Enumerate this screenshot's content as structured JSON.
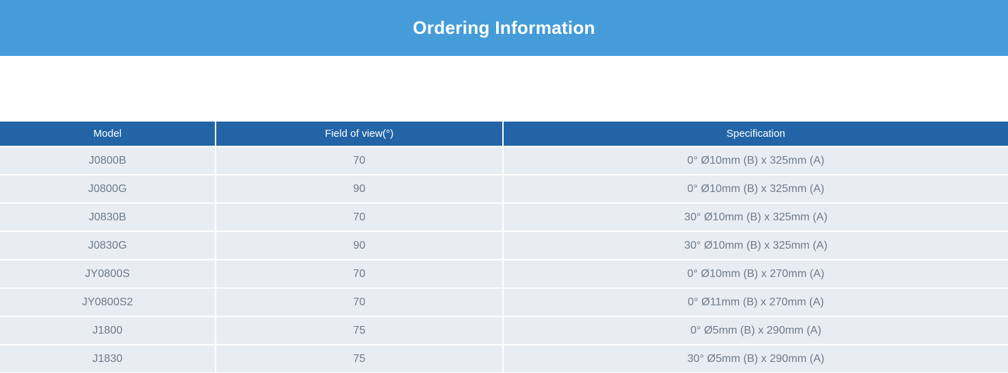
{
  "banner": {
    "title": "Ordering Information"
  },
  "colors": {
    "banner_bg": "#459cd9",
    "table_header_bg": "#2364a7",
    "row_bg": "#e8edf4",
    "cell_text": "#6e7b88",
    "header_text": "#ffffff"
  },
  "table": {
    "columns": [
      "Model",
      "Field of view(°)",
      "Specification"
    ],
    "rows": [
      {
        "model": "J0800B",
        "fov": "70",
        "spec": "0° Ø10mm (B) x 325mm (A)"
      },
      {
        "model": "J0800G",
        "fov": "90",
        "spec": "0° Ø10mm (B) x 325mm (A)"
      },
      {
        "model": "J0830B",
        "fov": "70",
        "spec": "30° Ø10mm (B) x 325mm (A)"
      },
      {
        "model": "J0830G",
        "fov": "90",
        "spec": "30° Ø10mm (B) x 325mm (A)"
      },
      {
        "model": "JY0800S",
        "fov": "70",
        "spec": "0° Ø10mm (B) x 270mm (A)"
      },
      {
        "model": "JY0800S2",
        "fov": "70",
        "spec": "0° Ø11mm (B) x 270mm (A)"
      },
      {
        "model": "J1800",
        "fov": "75",
        "spec": "0° Ø5mm (B) x 290mm (A)"
      },
      {
        "model": "J1830",
        "fov": "75",
        "spec": "30° Ø5mm (B) x 290mm (A)"
      }
    ]
  }
}
